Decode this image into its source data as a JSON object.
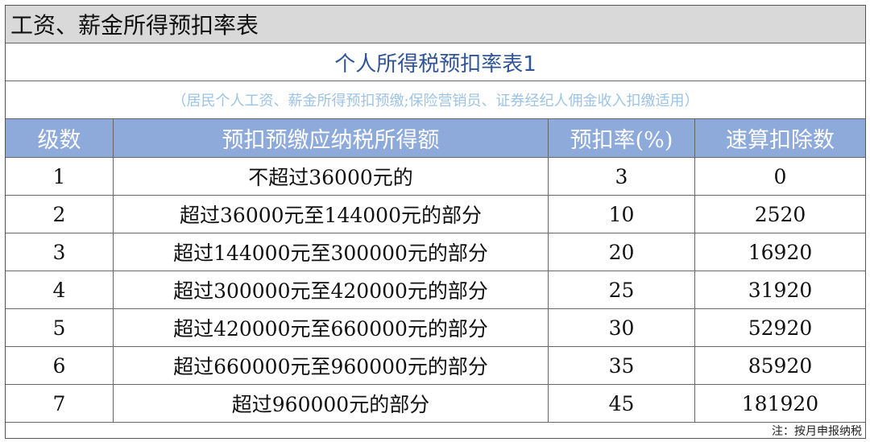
{
  "title": "工资、薪金所得预扣率表",
  "subtitle": "个人所得税预扣率表1",
  "description": "（居民个人工资、薪金所得预扣预缴;保险营销员、证券经纪人佣金收入扣缴适用）",
  "headers": [
    "级数",
    "预扣预缴应纳税所得额",
    "预扣率(%)",
    "速算扣除数"
  ],
  "rows": [
    [
      "1",
      "不超过36000元的",
      "3",
      "0"
    ],
    [
      "2",
      "超过36000元至144000元的部分",
      "10",
      "2520"
    ],
    [
      "3",
      "超过144000元至300000元的部分",
      "20",
      "16920"
    ],
    [
      "4",
      "超过300000元至420000元的部分",
      "25",
      "31920"
    ],
    [
      "5",
      "超过420000元至660000元的部分",
      "30",
      "52920"
    ],
    [
      "6",
      "超过660000元至960000元的部分",
      "35",
      "85920"
    ],
    [
      "7",
      "超过960000元的部分",
      "45",
      "181920"
    ]
  ],
  "note": "注：按月申报纳税",
  "colors": {
    "title_bg": "#d9d9d9",
    "header_bg": "#8eaadb",
    "subtitle": "#2f5597",
    "description": "#9dc3e6"
  }
}
